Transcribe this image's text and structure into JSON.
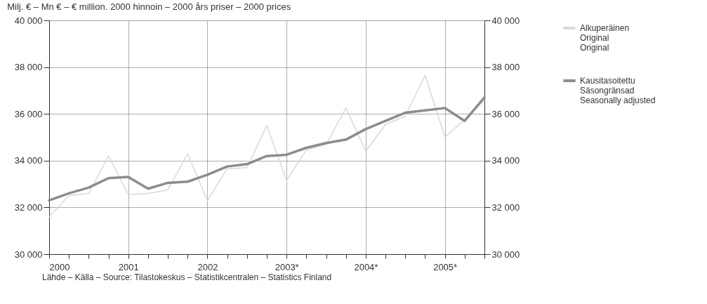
{
  "chart_data": {
    "type": "line",
    "title": "Milj. € – Mn € – € million.  2000 hinnoin – 2000 års priser – 2000 prices",
    "x": [
      2000,
      2000.25,
      2000.5,
      2000.75,
      2001,
      2001.25,
      2001.5,
      2001.75,
      2002,
      2002.25,
      2002.5,
      2002.75,
      2003,
      2003.25,
      2003.5,
      2003.75,
      2004,
      2004.25,
      2004.5,
      2004.75,
      2005,
      2005.25,
      2005.5
    ],
    "series": [
      {
        "name": "Alkuperäinen\nOriginal\nOriginal",
        "color": "#d9d9d9",
        "values": [
          31600,
          32500,
          32600,
          34200,
          32550,
          32600,
          32750,
          34300,
          32300,
          33650,
          33700,
          35500,
          33150,
          34450,
          34700,
          36250,
          34400,
          35550,
          35900,
          37650,
          35000,
          35750,
          36600
        ]
      },
      {
        "name": "Kausitasoitettu\nSäsongränsad\nSeasonally adjusted",
        "color": "#8c8c8c",
        "values": [
          32300,
          32600,
          32850,
          33250,
          33300,
          32800,
          33050,
          33100,
          33400,
          33750,
          33850,
          34200,
          34250,
          34550,
          34750,
          34900,
          35350,
          35700,
          36050,
          36150,
          36250,
          35700,
          36700
        ]
      }
    ],
    "xlim": [
      2000,
      2005.5
    ],
    "xticks": [
      2000,
      {
        "value": 2000.25,
        "label": null
      },
      {
        "value": 2000.5,
        "label": null
      },
      {
        "value": 2000.75,
        "label": null
      },
      2001,
      {
        "value": 2001.25,
        "label": null
      },
      {
        "value": 2001.5,
        "label": null
      },
      {
        "value": 2001.75,
        "label": null
      },
      2002,
      {
        "value": 2002.25,
        "label": null
      },
      {
        "value": 2002.5,
        "label": null
      },
      {
        "value": 2002.75,
        "label": null
      },
      {
        "value": 2003,
        "label": "2003*"
      },
      {
        "value": 2003.25,
        "label": null
      },
      {
        "value": 2003.5,
        "label": null
      },
      {
        "value": 2003.75,
        "label": null
      },
      {
        "value": 2004,
        "label": "2004*"
      },
      {
        "value": 2004.25,
        "label": null
      },
      {
        "value": 2004.5,
        "label": null
      },
      {
        "value": 2004.75,
        "label": null
      },
      {
        "value": 2005,
        "label": "2005*"
      },
      {
        "value": 2005.25,
        "label": null
      },
      {
        "value": 2005.5,
        "label": null
      }
    ],
    "ylim": [
      30000,
      40000
    ],
    "yticks": [
      {
        "value": 30000,
        "label": "30 000"
      },
      {
        "value": 32000,
        "label": "32 000"
      },
      {
        "value": 34000,
        "label": "34 000"
      },
      {
        "value": 36000,
        "label": "36 000"
      },
      {
        "value": 38000,
        "label": "38 000"
      },
      {
        "value": 40000,
        "label": "40 000"
      }
    ],
    "y2lim": [
      30000,
      40000
    ],
    "y2ticks": [
      {
        "value": 30000,
        "label": "30 000"
      },
      {
        "value": 32000,
        "label": "32 000"
      },
      {
        "value": 34000,
        "label": "34 000"
      },
      {
        "value": 36000,
        "label": "36 000"
      },
      {
        "value": 38000,
        "label": "38 000"
      },
      {
        "value": 40000,
        "label": "40 000"
      }
    ],
    "grid": true,
    "legend": "right",
    "line_style": "solid",
    "annotations": [
      "Lähde – Källa – Source: Tilastokeskus – Statistikcentralen – Statistics Finland"
    ]
  }
}
